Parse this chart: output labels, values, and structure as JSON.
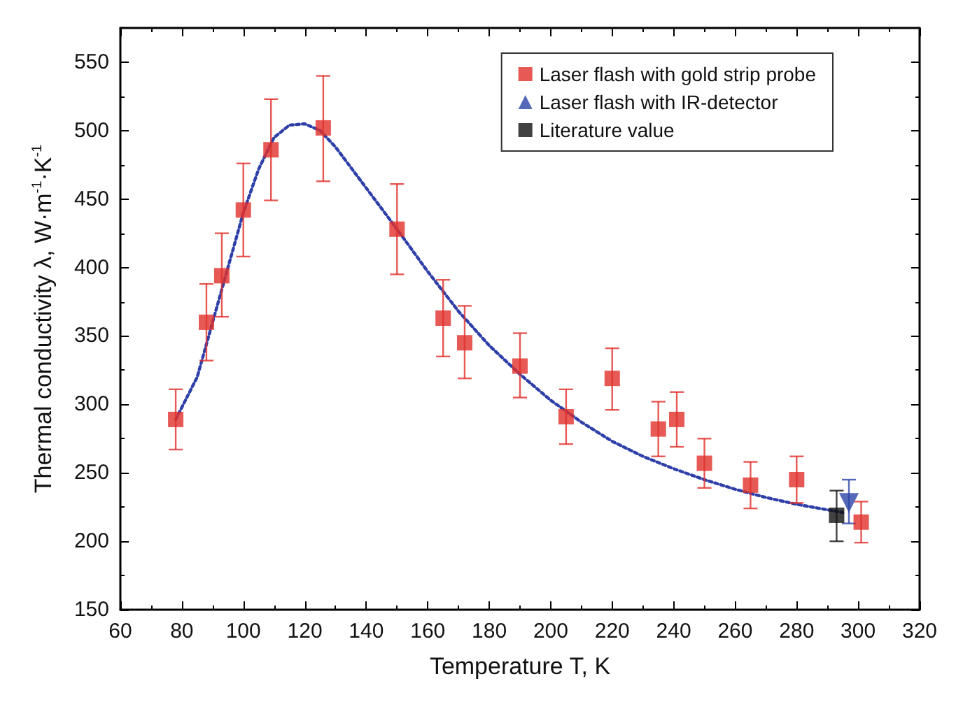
{
  "chart_data": {
    "type": "scatter",
    "xlabel": "Temperature T, K",
    "ylabel": "Thermal conductivity λ, W·m$^{-1}$·K$^{-1}$",
    "xlim": [
      60,
      320
    ],
    "xticks": [
      60,
      80,
      100,
      120,
      140,
      160,
      180,
      200,
      220,
      240,
      260,
      280,
      300,
      320
    ],
    "ylim": [
      150,
      575
    ],
    "yticks": [
      150,
      200,
      250,
      300,
      350,
      400,
      450,
      500,
      550
    ],
    "grid": false,
    "legend": "top right",
    "series": [
      {
        "name": "Laser flash with gold strip probe",
        "color": "#e0302a",
        "marker": "square",
        "x": [
          78,
          88,
          93,
          100,
          109,
          126,
          150,
          165,
          172,
          190,
          205,
          220,
          235,
          241,
          250,
          265,
          280,
          301
        ],
        "values": [
          289,
          360,
          394,
          442,
          486,
          502,
          428,
          363,
          345,
          328,
          291,
          319,
          282,
          289,
          257,
          241,
          245,
          214
        ],
        "errors": [
          [
            267,
            311
          ],
          [
            332,
            388
          ],
          [
            364,
            425
          ],
          [
            408,
            476
          ],
          [
            449,
            523
          ],
          [
            463,
            540
          ],
          [
            395,
            461
          ],
          [
            335,
            391
          ],
          [
            319,
            372
          ],
          [
            305,
            352
          ],
          [
            271,
            311
          ],
          [
            296,
            341
          ],
          [
            262,
            302
          ],
          [
            269,
            309
          ],
          [
            239,
            275
          ],
          [
            224,
            258
          ],
          [
            228,
            262
          ],
          [
            199,
            229
          ]
        ]
      },
      {
        "name": "Laser flash with IR-detector",
        "color": "#2b44a8",
        "marker": "triangle",
        "x": [
          297
        ],
        "values": [
          228
        ],
        "errors": [
          [
            213,
            245
          ]
        ]
      },
      {
        "name": "Literature value",
        "color": "#111111",
        "marker": "square",
        "x": [
          293
        ],
        "values": [
          219
        ],
        "errors": [
          [
            200,
            237
          ]
        ]
      },
      {
        "type": "line",
        "color": "#2e3fa8",
        "marker": "none",
        "line_style": "dotted",
        "x": [
          78,
          85,
          90,
          95,
          100,
          105,
          110,
          115,
          120,
          125,
          130,
          140,
          150,
          160,
          170,
          180,
          190,
          200,
          210,
          220,
          230,
          240,
          250,
          260,
          270,
          280,
          290,
          295
        ],
        "values": [
          289,
          320,
          360,
          400,
          440,
          472,
          495,
          504,
          505,
          500,
          488,
          458,
          428,
          397,
          368,
          343,
          322,
          303,
          287,
          273,
          262,
          253,
          245,
          238,
          232,
          227,
          223,
          221
        ]
      }
    ]
  }
}
